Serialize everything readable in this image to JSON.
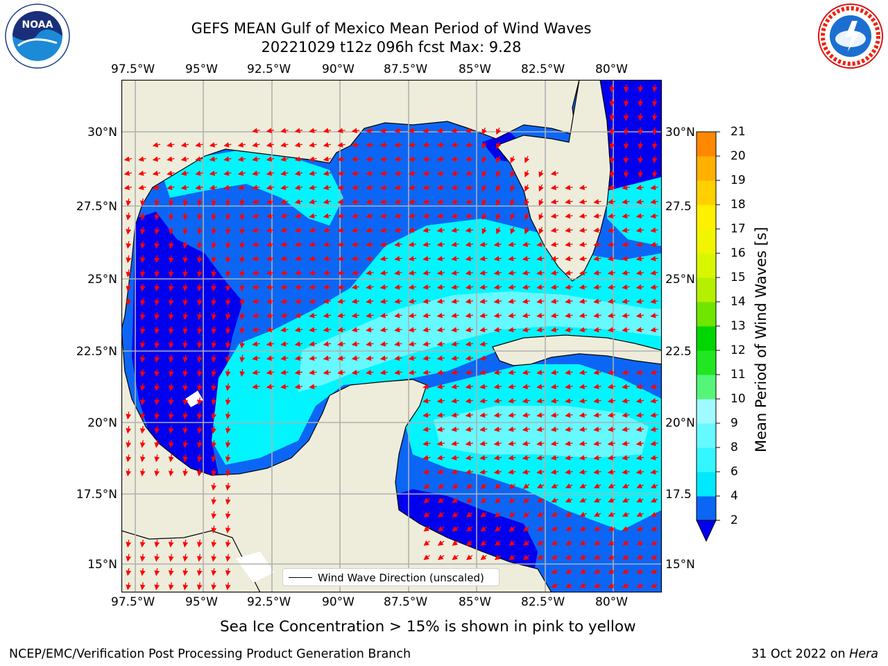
{
  "title_line1": "GEFS MEAN Gulf of Mexico Mean Period of Wind Waves",
  "title_line2": "20221029 t12z 096h fcst   Max: 9.28",
  "longitude_ticks": [
    "97.5°W",
    "95°W",
    "92.5°W",
    "90°W",
    "87.5°W",
    "85°W",
    "82.5°W",
    "80°W"
  ],
  "latitude_ticks_left": [
    "30°N",
    "27.5°N",
    "25°N",
    "22.5°N",
    "20°N",
    "17.5°N",
    "15°N"
  ],
  "latitude_ticks_right": [
    "30°N",
    "27.5",
    "25°N",
    "22.5",
    "20°N",
    "17.5",
    "15°N"
  ],
  "legend": {
    "label": "Wind Wave Direction (unscaled)"
  },
  "colorbar": {
    "label": "Mean Period of Wind Waves [s]",
    "ticks": [
      "2",
      "4",
      "6",
      "8",
      "9",
      "10",
      "11",
      "12",
      "13",
      "14",
      "15",
      "16",
      "17",
      "18",
      "19",
      "20",
      "21"
    ],
    "colors": [
      "#0c66f5",
      "#00e8ff",
      "#33f6ff",
      "#66f9ff",
      "#a0faff",
      "#55f57a",
      "#21e621",
      "#00d600",
      "#6ee600",
      "#b4f000",
      "#d7f700",
      "#f2f500",
      "#ffef00",
      "#ffd000",
      "#ffb000",
      "#ff8800",
      "#ff5e00",
      "#ff3000",
      "#ff0000"
    ],
    "under_color": "#0000ee"
  },
  "sea_ice_note": "Sea Ice Concentration > 15% is shown in pink to yellow",
  "footer_left": "NCEP/EMC/Verification Post Processing Product Generation Branch",
  "footer_date": "31 Oct 2022 on ",
  "footer_host": "Hera",
  "logos": {
    "left": "NOAA",
    "right": "NATIONAL WEATHER SERVICE"
  },
  "map_colors": {
    "land": "#eeeddb",
    "level_lt2": "#0000ee",
    "level_2_4": "#0c66f5",
    "level_4_6": "#00f5ff",
    "level_6_8": "#66f9ff",
    "arrow": "#ff0000"
  }
}
